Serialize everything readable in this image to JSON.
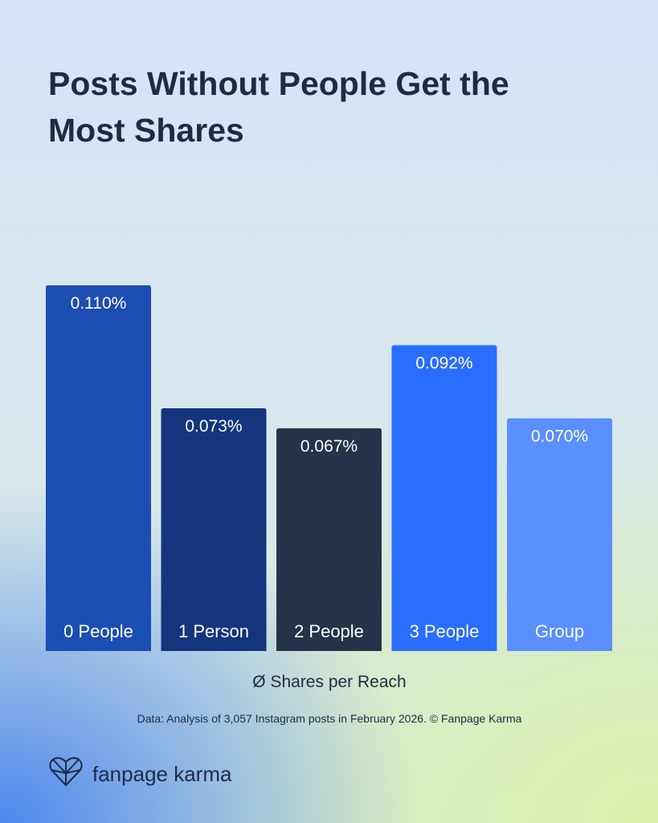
{
  "chart_data": {
    "type": "bar",
    "title": "Posts Without People Get the Most Shares",
    "categories": [
      "0 People",
      "1 Person",
      "2 People",
      "3 People",
      "Group"
    ],
    "values": [
      0.11,
      0.073,
      0.067,
      0.092,
      0.07
    ],
    "value_labels": [
      "0.110%",
      "0.073%",
      "0.067%",
      "0.092%",
      "0.070%"
    ],
    "colors": [
      "#1c4db3",
      "#14357e",
      "#25334b",
      "#2a6dff",
      "#5b8fff"
    ],
    "xlabel": "Ø Shares per Reach",
    "source": "Data: Analysis of 3,057 Instagram posts in February 2026. © Fanpage Karma"
  },
  "brand": "fanpage karma"
}
